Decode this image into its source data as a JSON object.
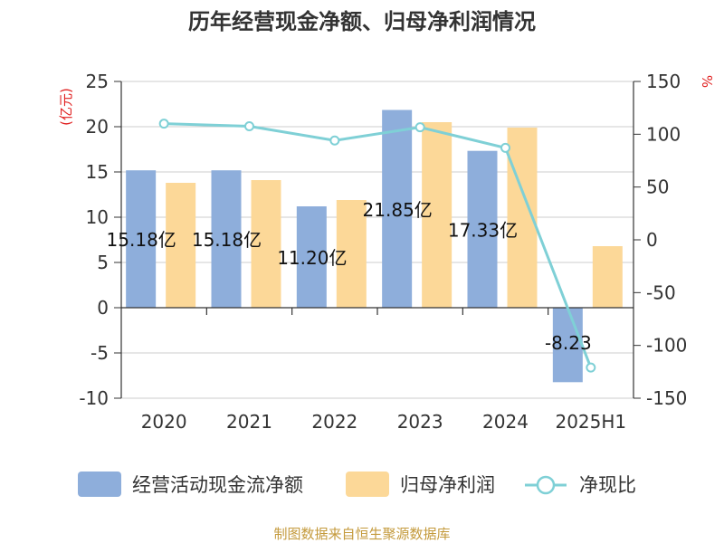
{
  "title": "历年经营现金净额、归母净利润情况",
  "source": "制图数据来自恒生聚源数据库",
  "chart_data": {
    "type": "bar",
    "title": "历年经营现金净额、归母净利润情况",
    "categories": [
      "2020",
      "2021",
      "2022",
      "2023",
      "2024",
      "2025H1"
    ],
    "left_axis": {
      "unit": "(亿元)",
      "ylim": [
        -10,
        25
      ],
      "ticks": [
        "25",
        "20",
        "15",
        "10",
        "5",
        "0",
        "-5",
        "-10"
      ],
      "tick_values": [
        25,
        20,
        15,
        10,
        5,
        0,
        -5,
        -10
      ]
    },
    "right_axis": {
      "unit": "%",
      "ylim": [
        -150,
        150
      ],
      "ticks": [
        "150",
        "100",
        "50",
        "0",
        "-50",
        "-100",
        "-150"
      ],
      "tick_values": [
        150,
        100,
        50,
        0,
        -50,
        -100,
        -150
      ]
    },
    "series": [
      {
        "name": "经营活动现金流净额",
        "kind": "bar",
        "axis": "left",
        "color": "#8eaedb",
        "values": [
          15.18,
          15.18,
          11.2,
          21.85,
          17.33,
          -8.23
        ],
        "data_labels": [
          "15.18亿",
          "15.18亿",
          "11.20亿",
          "21.85亿",
          "17.33亿",
          "-8.23"
        ]
      },
      {
        "name": "归母净利润",
        "kind": "bar",
        "axis": "left",
        "color": "#fcd898",
        "values": [
          13.8,
          14.1,
          11.9,
          20.5,
          19.9,
          6.8
        ]
      },
      {
        "name": "净现比",
        "kind": "line",
        "axis": "right",
        "color": "#7fd0d6",
        "values": [
          110,
          107.6,
          94.1,
          106.6,
          87.1,
          -121
        ]
      }
    ],
    "grid": true,
    "legend": "bottom"
  }
}
